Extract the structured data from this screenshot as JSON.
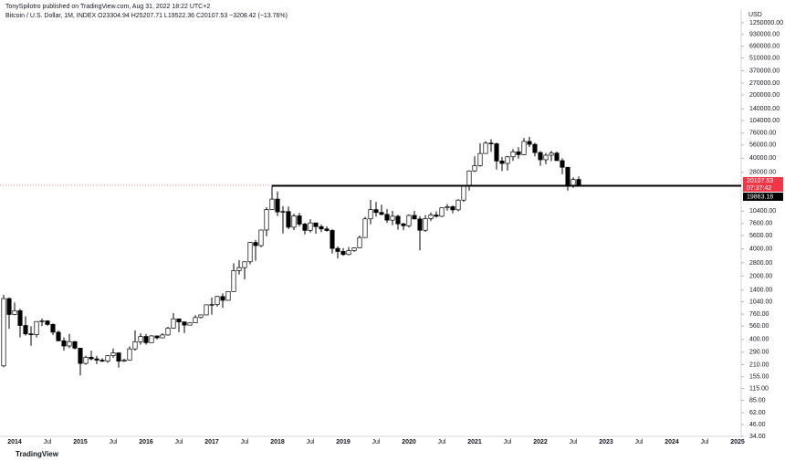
{
  "header": {
    "publisher": "TonySpilotro published on TradingView.com, Aug 31, 2022 18:22 UTC+2",
    "legend": "Bitcoin / U.S. Dollar, 1M, INDEX  O23304.94  H25207.71  L19522.36  C20107.53  −3208.42 (−13.76%)"
  },
  "footer": {
    "brand": "TradingView"
  },
  "chart_data": {
    "type": "candlestick",
    "log_scale": true,
    "grid": false,
    "up_color": "#ffffff",
    "down_color": "#000000",
    "outline_color": "#000000",
    "currency": "USD",
    "countdown": "07:37:42",
    "hline": 19863.18,
    "hline_color": "#000000",
    "last_price_color": "#f23645",
    "ylim": [
      28.9,
      1771000
    ],
    "yticks": [
      {
        "value": 1250000,
        "label": "1250000.00"
      },
      {
        "value": 930000,
        "label": "930000.00"
      },
      {
        "value": 690000,
        "label": "690000.00"
      },
      {
        "value": 510000,
        "label": "510000.00"
      },
      {
        "value": 370000,
        "label": "370000.00"
      },
      {
        "value": 270000,
        "label": "270000.00"
      },
      {
        "value": 200000,
        "label": "200000.00"
      },
      {
        "value": 140000,
        "label": "140000.00"
      },
      {
        "value": 104000,
        "label": "104000.00"
      },
      {
        "value": 76000,
        "label": "76000.00"
      },
      {
        "value": 56000,
        "label": "56000.00"
      },
      {
        "value": 40000,
        "label": "40000.00"
      },
      {
        "value": 28000,
        "label": "28000.00"
      },
      {
        "value": 10400,
        "label": "10400.00"
      },
      {
        "value": 7600,
        "label": "7600.00"
      },
      {
        "value": 5600,
        "label": "5600.00"
      },
      {
        "value": 4000,
        "label": "4000.00"
      },
      {
        "value": 2800,
        "label": "2800.00"
      },
      {
        "value": 2000,
        "label": "2000.00"
      },
      {
        "value": 1400,
        "label": "1400.00"
      },
      {
        "value": 1040,
        "label": "1040.00"
      },
      {
        "value": 760,
        "label": "760.00"
      },
      {
        "value": 560,
        "label": "560.00"
      },
      {
        "value": 400,
        "label": "400.00"
      },
      {
        "value": 290,
        "label": "290.00"
      },
      {
        "value": 210,
        "label": "210.00"
      },
      {
        "value": 155,
        "label": "155.00"
      },
      {
        "value": 115,
        "label": "115.00"
      },
      {
        "value": 85,
        "label": "85.00"
      },
      {
        "value": 62,
        "label": "62.00"
      },
      {
        "value": 46,
        "label": "46.00"
      },
      {
        "value": 34,
        "label": "34.00"
      }
    ],
    "xticks": [
      {
        "value": "2014-01",
        "label": "2014"
      },
      {
        "value": "2014-07",
        "label": "Jul"
      },
      {
        "value": "2015-01",
        "label": "2015"
      },
      {
        "value": "2015-07",
        "label": "Jul"
      },
      {
        "value": "2016-01",
        "label": "2016"
      },
      {
        "value": "2016-07",
        "label": "Jul"
      },
      {
        "value": "2017-01",
        "label": "2017"
      },
      {
        "value": "2017-07",
        "label": "Jul"
      },
      {
        "value": "2018-01",
        "label": "2018"
      },
      {
        "value": "2018-07",
        "label": "Jul"
      },
      {
        "value": "2019-01",
        "label": "2019"
      },
      {
        "value": "2019-07",
        "label": "Jul"
      },
      {
        "value": "2020-01",
        "label": "2020"
      },
      {
        "value": "2020-07",
        "label": "Jul"
      },
      {
        "value": "2021-01",
        "label": "2021"
      },
      {
        "value": "2021-07",
        "label": "Jul"
      },
      {
        "value": "2022-01",
        "label": "2022"
      },
      {
        "value": "2022-07",
        "label": "Jul"
      },
      {
        "value": "2023-01",
        "label": "2023"
      },
      {
        "value": "2023-07",
        "label": "Jul"
      },
      {
        "value": "2024-01",
        "label": "2024"
      },
      {
        "value": "2024-07",
        "label": "Jul"
      },
      {
        "value": "2025-01",
        "label": "2025"
      }
    ],
    "x": [
      "2013-11",
      "2013-12",
      "2014-01",
      "2014-02",
      "2014-03",
      "2014-04",
      "2014-05",
      "2014-06",
      "2014-07",
      "2014-08",
      "2014-09",
      "2014-10",
      "2014-11",
      "2014-12",
      "2015-01",
      "2015-02",
      "2015-03",
      "2015-04",
      "2015-05",
      "2015-06",
      "2015-07",
      "2015-08",
      "2015-09",
      "2015-10",
      "2015-11",
      "2015-12",
      "2016-01",
      "2016-02",
      "2016-03",
      "2016-04",
      "2016-05",
      "2016-06",
      "2016-07",
      "2016-08",
      "2016-09",
      "2016-10",
      "2016-11",
      "2016-12",
      "2017-01",
      "2017-02",
      "2017-03",
      "2017-04",
      "2017-05",
      "2017-06",
      "2017-07",
      "2017-08",
      "2017-09",
      "2017-10",
      "2017-11",
      "2017-12",
      "2018-01",
      "2018-02",
      "2018-03",
      "2018-04",
      "2018-05",
      "2018-06",
      "2018-07",
      "2018-08",
      "2018-09",
      "2018-10",
      "2018-11",
      "2018-12",
      "2019-01",
      "2019-02",
      "2019-03",
      "2019-04",
      "2019-05",
      "2019-06",
      "2019-07",
      "2019-08",
      "2019-09",
      "2019-10",
      "2019-11",
      "2019-12",
      "2020-01",
      "2020-02",
      "2020-03",
      "2020-04",
      "2020-05",
      "2020-06",
      "2020-07",
      "2020-08",
      "2020-09",
      "2020-10",
      "2020-11",
      "2020-12",
      "2021-01",
      "2021-02",
      "2021-03",
      "2021-04",
      "2021-05",
      "2021-06",
      "2021-07",
      "2021-08",
      "2021-09",
      "2021-10",
      "2021-11",
      "2021-12",
      "2022-01",
      "2022-02",
      "2022-03",
      "2022-04",
      "2022-05",
      "2022-06",
      "2022-07",
      "2022-08"
    ],
    "open": [
      204,
      1129,
      754,
      830,
      570,
      460,
      450,
      630,
      640,
      585,
      480,
      386,
      338,
      378,
      320,
      217,
      254,
      244,
      236,
      230,
      264,
      284,
      230,
      236,
      314,
      377,
      431,
      368,
      437,
      416,
      448,
      532,
      674,
      624,
      575,
      609,
      698,
      745,
      963,
      970,
      1190,
      1080,
      1350,
      2300,
      2480,
      2875,
      4700,
      4340,
      6450,
      10850,
      14150,
      10220,
      10320,
      6930,
      9240,
      7490,
      6390,
      7730,
      7030,
      6630,
      6370,
      4040,
      3740,
      3460,
      3820,
      4100,
      5330,
      8560,
      10820,
      10080,
      9600,
      8290,
      9150,
      7540,
      7190,
      9350,
      8540,
      6410,
      8630,
      9450,
      9140,
      11330,
      11650,
      10780,
      13800,
      19700,
      28990,
      33110,
      45140,
      58740,
      57720,
      37300,
      35040,
      41460,
      47100,
      43820,
      61300,
      56950,
      46210,
      38480,
      43180,
      45530,
      37630,
      31790,
      19930,
      23304.94
    ],
    "high": [
      1242,
      1165,
      1020,
      870,
      720,
      560,
      630,
      680,
      650,
      600,
      500,
      420,
      460,
      384,
      320,
      265,
      300,
      263,
      248,
      268,
      317,
      285,
      245,
      334,
      502,
      467,
      460,
      445,
      440,
      470,
      550,
      780,
      680,
      630,
      615,
      740,
      752,
      975,
      1160,
      1210,
      1290,
      1350,
      2760,
      3000,
      2900,
      4750,
      5000,
      6470,
      11500,
      19800,
      17250,
      11800,
      11700,
      9760,
      9990,
      7760,
      8500,
      7760,
      7410,
      7080,
      6590,
      4240,
      4070,
      4200,
      4130,
      5600,
      9000,
      13880,
      13200,
      12300,
      10950,
      10500,
      9510,
      7750,
      9580,
      10500,
      9190,
      9460,
      10070,
      10380,
      11440,
      12480,
      12070,
      14100,
      19900,
      29300,
      41950,
      58350,
      61780,
      64860,
      59590,
      41330,
      42450,
      50500,
      52920,
      67000,
      69000,
      59100,
      47990,
      45800,
      48190,
      47440,
      39980,
      31990,
      24670,
      25207.71
    ],
    "low": [
      197,
      522,
      740,
      420,
      440,
      340,
      420,
      560,
      565,
      445,
      380,
      300,
      320,
      310,
      160,
      210,
      235,
      214,
      225,
      220,
      250,
      195,
      225,
      235,
      300,
      350,
      350,
      367,
      400,
      412,
      439,
      525,
      480,
      470,
      570,
      605,
      680,
      740,
      750,
      920,
      890,
      1070,
      1350,
      2080,
      1840,
      2700,
      2950,
      4160,
      5500,
      10700,
      9200,
      5900,
      6600,
      6430,
      7050,
      5750,
      6070,
      5880,
      6110,
      6180,
      3550,
      3130,
      3350,
      3390,
      3700,
      4080,
      5330,
      7450,
      9050,
      9320,
      7730,
      7300,
      6510,
      6430,
      6860,
      8450,
      3850,
      6150,
      8110,
      8840,
      8980,
      10540,
      9880,
      10370,
      13200,
      17600,
      28130,
      32300,
      44950,
      47000,
      30000,
      28800,
      29300,
      37330,
      39600,
      43300,
      53250,
      42000,
      32950,
      34320,
      37200,
      37700,
      26700,
      17600,
      18780,
      19522.36
    ],
    "close": [
      1129,
      754,
      830,
      570,
      460,
      450,
      630,
      640,
      585,
      480,
      386,
      338,
      378,
      320,
      217,
      254,
      244,
      236,
      230,
      264,
      284,
      230,
      236,
      314,
      377,
      431,
      368,
      437,
      416,
      448,
      532,
      674,
      624,
      575,
      609,
      698,
      745,
      963,
      970,
      1190,
      1080,
      1350,
      2300,
      2480,
      2875,
      4700,
      4340,
      6450,
      10850,
      14150,
      10220,
      10320,
      6930,
      9240,
      7490,
      6390,
      7730,
      7030,
      6630,
      6370,
      4040,
      3740,
      3460,
      3820,
      4100,
      5330,
      8560,
      10820,
      10080,
      9600,
      8290,
      9150,
      7540,
      7190,
      9350,
      8540,
      6410,
      8630,
      9450,
      9140,
      11330,
      11650,
      10780,
      13800,
      19700,
      28990,
      33110,
      45140,
      58740,
      57720,
      37300,
      35040,
      41460,
      47100,
      43820,
      61300,
      56950,
      46210,
      38480,
      43180,
      45530,
      37630,
      31790,
      19930,
      23300,
      20107.53
    ]
  }
}
